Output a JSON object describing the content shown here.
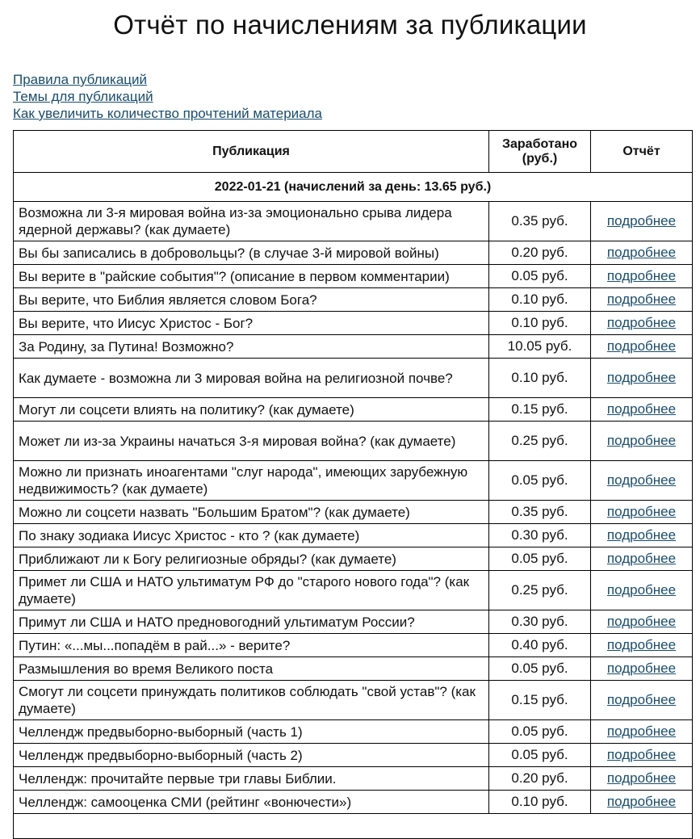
{
  "title": "Отчёт по начислениям за публикации",
  "links": [
    "Правила публикаций",
    "Темы для публикаций",
    "Как увеличить количество прочтений материала"
  ],
  "table": {
    "headers": {
      "publication": "Публикация",
      "earned": "Заработано (руб.)",
      "report": "Отчёт"
    },
    "date_row": "2022-01-21 (начислений за день: 13.65 руб.)",
    "link_label": "подробнее",
    "rows": [
      {
        "title": "Возможна ли 3-я мировая война из-за эмоционально срыва лидера ядерной державы? (как думаете)",
        "earned": "0.35 руб."
      },
      {
        "title": "Вы бы записались в добровольцы? (в случае 3-й мировой войны)",
        "earned": "0.20 руб."
      },
      {
        "title": "Вы верите в \"райские события\"? (описание в первом комментарии)",
        "earned": "0.05 руб."
      },
      {
        "title": "Вы верите, что Библия является словом Бога?",
        "earned": "0.10 руб."
      },
      {
        "title": "Вы верите, что Иисус Христос - Бог?",
        "earned": "0.10 руб."
      },
      {
        "title": "За Родину, за Путина! Возможно?",
        "earned": "10.05 руб."
      },
      {
        "title": "Как думаете - возможна ли 3 мировая война на религиозной почве?",
        "earned": "0.10 руб."
      },
      {
        "title": "Могут ли соцсети влиять на политику? (как думаете)",
        "earned": "0.15 руб."
      },
      {
        "title": "Может ли из-за Украины начаться 3-я мировая война? (как думаете)",
        "earned": "0.25 руб."
      },
      {
        "title": "Можно ли признать иноагентами \"слуг народа\", имеющих зарубежную недвижимость? (как думаете)",
        "earned": "0.05 руб."
      },
      {
        "title": "Можно ли соцсети назвать \"Большим Братом\"? (как думаете)",
        "earned": "0.35 руб."
      },
      {
        "title": "По знаку зодиака Иисус Христос - кто ? (как думаете)",
        "earned": "0.30 руб."
      },
      {
        "title": "Приближают ли к Богу религиозные обряды? (как думаете)",
        "earned": "0.05 руб."
      },
      {
        "title": "Примет ли США и НАТО ультиматум РФ до \"старого нового года\"? (как думаете)",
        "earned": "0.25 руб."
      },
      {
        "title": "Примут ли США и НАТО предновогодний ультиматум России?",
        "earned": "0.30 руб."
      },
      {
        "title": "Путин: «...мы...попадём в рай...» - верите?",
        "earned": "0.40 руб."
      },
      {
        "title": "Размышления во время Великого поста",
        "earned": "0.05 руб."
      },
      {
        "title": "Смогут ли соцсети принуждать политиков соблюдать \"свой устав\"? (как думаете)",
        "earned": "0.15 руб."
      },
      {
        "title": "Челлендж предвыборно-выборный (часть 1)",
        "earned": "0.05 руб."
      },
      {
        "title": "Челлендж предвыборно-выборный (часть 2)",
        "earned": "0.05 руб."
      },
      {
        "title": "Челлендж: прочитайте первые три главы Библии.",
        "earned": "0.20 руб."
      },
      {
        "title": "Челлендж: самооценка СМИ (рейтинг «вонючести»)",
        "earned": "0.10 руб."
      }
    ]
  }
}
